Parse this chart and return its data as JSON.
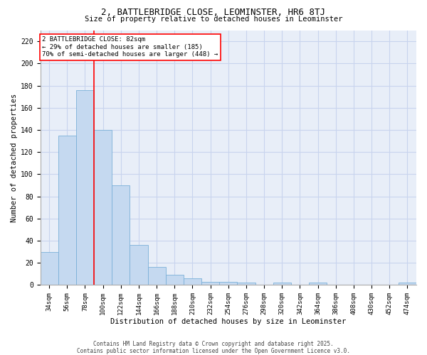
{
  "title": "2, BATTLEBRIDGE CLOSE, LEOMINSTER, HR6 8TJ",
  "subtitle": "Size of property relative to detached houses in Leominster",
  "xlabel": "Distribution of detached houses by size in Leominster",
  "ylabel": "Number of detached properties",
  "footer_line1": "Contains HM Land Registry data © Crown copyright and database right 2025.",
  "footer_line2": "Contains public sector information licensed under the Open Government Licence v3.0.",
  "bar_labels": [
    "34sqm",
    "56sqm",
    "78sqm",
    "100sqm",
    "122sqm",
    "144sqm",
    "166sqm",
    "188sqm",
    "210sqm",
    "232sqm",
    "254sqm",
    "276sqm",
    "298sqm",
    "320sqm",
    "342sqm",
    "364sqm",
    "386sqm",
    "408sqm",
    "430sqm",
    "452sqm",
    "474sqm"
  ],
  "bar_values": [
    30,
    135,
    176,
    140,
    90,
    36,
    16,
    9,
    6,
    3,
    3,
    2,
    0,
    2,
    0,
    2,
    0,
    0,
    0,
    0,
    2
  ],
  "bar_color": "#c5d9f0",
  "bar_edge_color": "#7ab0d8",
  "grid_color": "#c8d4ee",
  "background_color": "#e8eef8",
  "annotation_text": "2 BATTLEBRIDGE CLOSE: 82sqm\n← 29% of detached houses are smaller (185)\n70% of semi-detached houses are larger (448) →",
  "red_line_bar_index": 2,
  "ylim": [
    0,
    230
  ],
  "yticks": [
    0,
    20,
    40,
    60,
    80,
    100,
    120,
    140,
    160,
    180,
    200,
    220
  ]
}
